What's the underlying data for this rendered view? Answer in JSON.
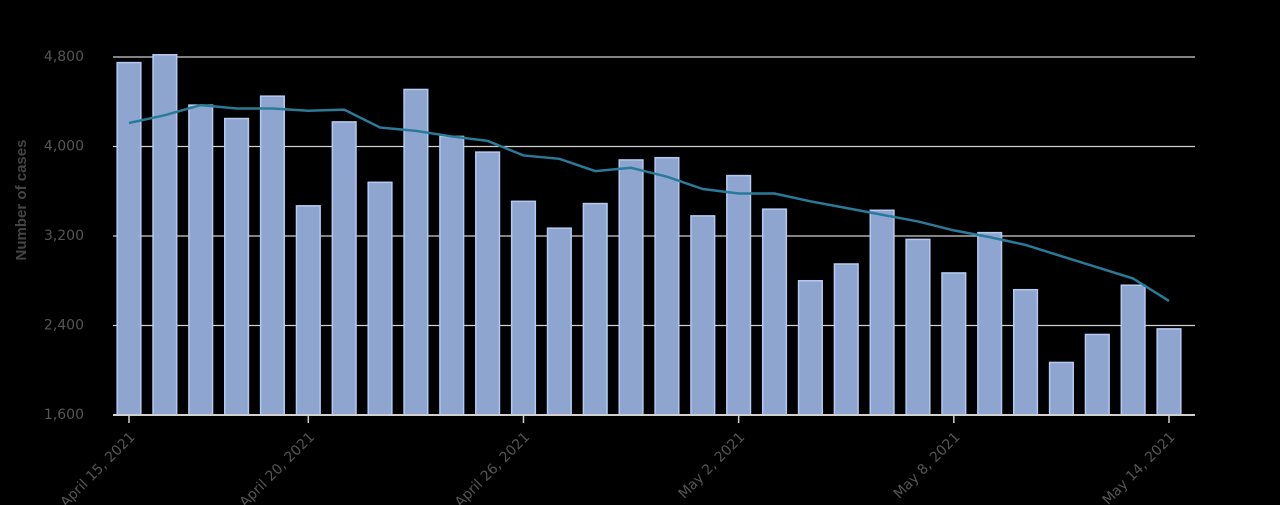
{
  "chart_data": {
    "type": "bar",
    "y_label": "Number of cases",
    "x": [
      "2021-04-15",
      "2021-04-16",
      "2021-04-17",
      "2021-04-18",
      "2021-04-19",
      "2021-04-20",
      "2021-04-21",
      "2021-04-22",
      "2021-04-23",
      "2021-04-24",
      "2021-04-25",
      "2021-04-26",
      "2021-04-27",
      "2021-04-28",
      "2021-04-29",
      "2021-04-30",
      "2021-05-01",
      "2021-05-02",
      "2021-05-03",
      "2021-05-04",
      "2021-05-05",
      "2021-05-06",
      "2021-05-07",
      "2021-05-08",
      "2021-05-09",
      "2021-05-10",
      "2021-05-11",
      "2021-05-12",
      "2021-05-13",
      "2021-05-14"
    ],
    "series": [
      {
        "kind": "bar",
        "color": "#8ea6cf",
        "values": [
          4750,
          4820,
          4370,
          4250,
          4450,
          3470,
          4220,
          3680,
          4510,
          4090,
          3950,
          3510,
          3270,
          3490,
          3880,
          3900,
          3380,
          3740,
          3440,
          2800,
          2950,
          3430,
          3170,
          2870,
          3230,
          2720,
          2070,
          2320,
          2760,
          2370
        ]
      },
      {
        "kind": "line",
        "color": "#2a7a9a",
        "values": [
          4210,
          4280,
          4370,
          4340,
          4340,
          4320,
          4330,
          4170,
          4140,
          4090,
          4050,
          3920,
          3890,
          3780,
          3810,
          3730,
          3620,
          3580,
          3580,
          3510,
          3450,
          3390,
          3330,
          3250,
          3190,
          3120,
          3020,
          2920,
          2820,
          2620
        ]
      }
    ],
    "ylim": [
      1600,
      4800
    ],
    "yticks": [
      {
        "value": 1600,
        "label": "1,600"
      },
      {
        "value": 2400,
        "label": "2,400"
      },
      {
        "value": 3200,
        "label": "3,200"
      },
      {
        "value": 4000,
        "label": "4,000"
      },
      {
        "value": 4800,
        "label": "4,800"
      }
    ],
    "xticks": [
      {
        "value": "2021-04-15",
        "label": "April 15, 2021"
      },
      {
        "value": "2021-04-20",
        "label": "April 20, 2021"
      },
      {
        "value": "2021-04-26",
        "label": "April 26, 2021"
      },
      {
        "value": "2021-05-02",
        "label": "May 2, 2021"
      },
      {
        "value": "2021-05-08",
        "label": "May 8, 2021"
      },
      {
        "value": "2021-05-14",
        "label": "May 14, 2021"
      }
    ],
    "grid": true
  }
}
